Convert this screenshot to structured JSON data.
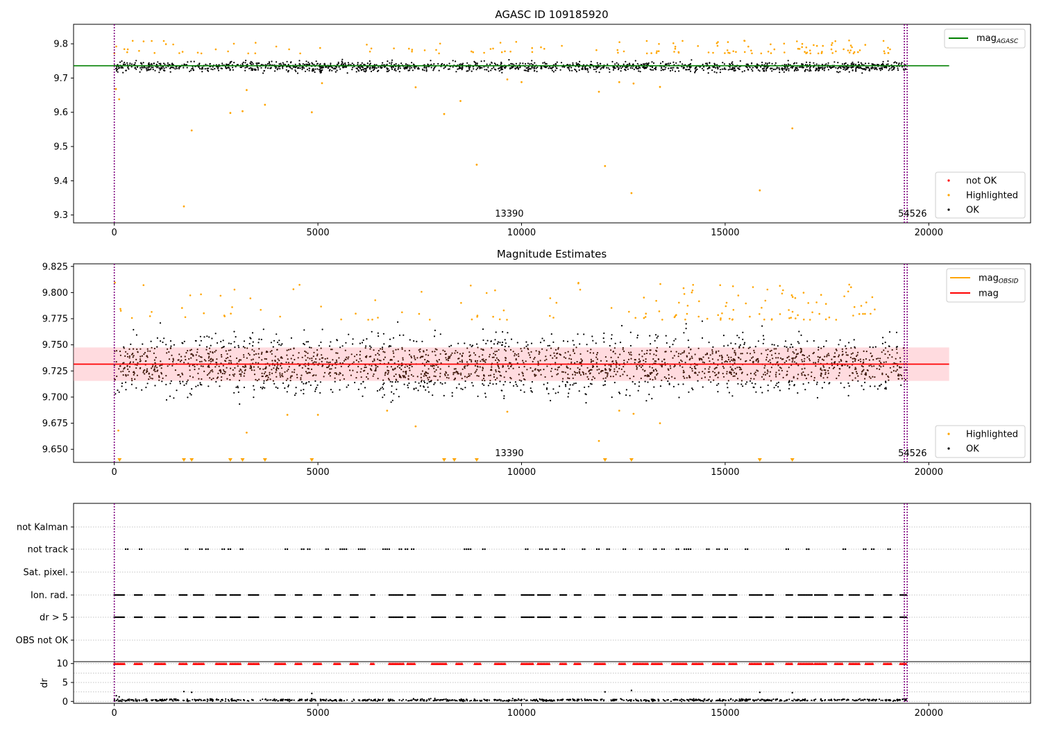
{
  "chart_data": [
    {
      "panel": "agasc",
      "type": "scatter",
      "title": "AGASC ID 109185920",
      "xlabel": "",
      "ylabel": "",
      "xlim": [
        -1000,
        22500
      ],
      "ylim": [
        9.277,
        9.857
      ],
      "xticks": [
        0,
        5000,
        10000,
        15000,
        20000
      ],
      "xtick_labels": [
        "0",
        "5000",
        "10000",
        "15000",
        "20000"
      ],
      "yticks": [
        9.3,
        9.4,
        9.5,
        9.6,
        9.7,
        9.8
      ],
      "ytick_labels": [
        "9.3",
        "9.4",
        "9.5",
        "9.6",
        "9.7",
        "9.8"
      ],
      "reference_line": {
        "name": "mag_AGASC",
        "value": 9.736,
        "x_range": [
          -1000,
          20500
        ],
        "color": "#008000"
      },
      "vertical_markers": [
        {
          "x": 0,
          "label": "13390",
          "label_x": 9700,
          "color": "#800080"
        },
        {
          "x": 19400,
          "label": "54526",
          "label_x": 19600,
          "color": "#800080"
        },
        {
          "x": 19470,
          "label": "",
          "color": "#800080"
        }
      ],
      "ok_band": {
        "series": "OK",
        "x_range": [
          0,
          19450
        ],
        "center": 9.733,
        "spread": 0.016,
        "count": 1600,
        "color": "#000000"
      },
      "highlighted_points": {
        "series": "Highlighted",
        "color": "#ffa500",
        "x": [
          1710,
          1900,
          2850,
          3150,
          3700,
          4850,
          8100,
          8500,
          8900,
          12050,
          12700,
          15850,
          16650,
          40,
          120,
          3250,
          5100,
          7400,
          9650,
          10000,
          11900,
          12400,
          12750,
          13400
        ],
        "y": [
          9.325,
          9.547,
          9.598,
          9.603,
          9.622,
          9.6,
          9.595,
          9.633,
          9.447,
          9.443,
          9.364,
          9.372,
          9.553,
          9.668,
          9.638,
          9.665,
          9.685,
          9.673,
          9.696,
          9.688,
          9.66,
          9.688,
          9.684,
          9.674
        ]
      },
      "highlighted_high": {
        "color": "#ffa500",
        "y_range": [
          9.772,
          9.81
        ],
        "count": 140
      },
      "legend": [
        {
          "name": "mag_AGASC",
          "label": "mag",
          "subscript": "AGASC",
          "kind": "line",
          "color": "#008000",
          "placement": "upper right"
        },
        {
          "name": "not OK",
          "label": "not OK",
          "kind": "point",
          "color": "#ff0000",
          "placement": "lower right"
        },
        {
          "name": "Highlighted",
          "label": "Highlighted",
          "kind": "point",
          "color": "#ffa500",
          "placement": "lower right"
        },
        {
          "name": "OK",
          "label": "OK",
          "kind": "point",
          "color": "#000000",
          "placement": "lower right"
        }
      ]
    },
    {
      "panel": "estimates",
      "type": "scatter",
      "title": "Magnitude Estimates",
      "xlabel": "",
      "ylabel": "",
      "xlim": [
        -1000,
        22500
      ],
      "ylim": [
        9.6375,
        9.8275
      ],
      "xticks": [
        0,
        5000,
        10000,
        15000,
        20000
      ],
      "xtick_labels": [
        "0",
        "5000",
        "10000",
        "15000",
        "20000"
      ],
      "yticks": [
        9.65,
        9.675,
        9.7,
        9.725,
        9.75,
        9.775,
        9.8,
        9.825
      ],
      "ytick_labels": [
        "9.650",
        "9.675",
        "9.700",
        "9.725",
        "9.750",
        "9.775",
        "9.800",
        "9.825"
      ],
      "mag_line": {
        "name": "mag",
        "value": 9.7315,
        "x_range": [
          -1000,
          20500
        ],
        "color": "#ff0000"
      },
      "mag_band": {
        "low": 9.7155,
        "high": 9.7475,
        "x_range": [
          -1000,
          20500
        ],
        "color": "#ffb0b8"
      },
      "mag_obsid": {
        "name": "mag_OBSID",
        "color": "#ffa500"
      },
      "vertical_markers": [
        {
          "x": 0,
          "label": "13390",
          "label_x": 9700,
          "color": "#800080"
        },
        {
          "x": 19400,
          "label": "54526",
          "label_x": 19600,
          "color": "#800080"
        },
        {
          "x": 19470,
          "label": "",
          "color": "#800080"
        }
      ],
      "ok_band": {
        "series": "OK",
        "x_range": [
          0,
          19450
        ],
        "center": 9.731,
        "spread": 0.016,
        "count": 2400,
        "color": "#000000",
        "overlay_color": "#3a1405"
      },
      "highlighted_low": {
        "color": "#ffa500",
        "x": [
          100,
          3250,
          4250,
          5000,
          6700,
          7400,
          9650,
          11900,
          12400,
          12750,
          13400
        ],
        "y": [
          9.668,
          9.666,
          9.683,
          9.683,
          9.687,
          9.672,
          9.686,
          9.658,
          9.687,
          9.684,
          9.675
        ]
      },
      "offscale_markers": {
        "color": "#ffa500",
        "x": [
          130,
          1710,
          1900,
          2850,
          3150,
          3700,
          4850,
          8100,
          8350,
          8900,
          12050,
          12700,
          15850,
          16650
        ]
      },
      "highlighted_high": {
        "color": "#ffa500",
        "y_range": [
          9.774,
          9.81
        ],
        "count": 140
      },
      "legend": [
        {
          "name": "mag_OBSID",
          "label": "mag",
          "subscript": "OBSID",
          "kind": "line",
          "color": "#ffa500",
          "placement": "upper right"
        },
        {
          "name": "mag",
          "label": "mag",
          "kind": "line",
          "color": "#ff0000",
          "placement": "upper right"
        },
        {
          "name": "Highlighted",
          "label": "Highlighted",
          "kind": "point",
          "color": "#ffa500",
          "placement": "lower right"
        },
        {
          "name": "OK",
          "label": "OK",
          "kind": "point",
          "color": "#000000",
          "placement": "lower right"
        }
      ]
    },
    {
      "panel": "flags",
      "type": "scatter",
      "title": "",
      "xlim": [
        -1000,
        22500
      ],
      "categories": [
        "not Kalman",
        "not track",
        "Sat. pixel.",
        "Ion. rad.",
        "dr > 5",
        "OBS not OK"
      ],
      "grid": true,
      "vertical_markers": [
        {
          "x": 0,
          "color": "#800080"
        },
        {
          "x": 19400,
          "color": "#800080"
        },
        {
          "x": 19470,
          "color": "#800080"
        }
      ],
      "flag_points": {
        "not Kalman": [],
        "not track": [
          280,
          620,
          1750,
          2100,
          2250,
          2650,
          2800,
          3100,
          4200,
          4600,
          4750,
          5200,
          5550,
          5650,
          6000,
          6100,
          6600,
          6700,
          7000,
          7150,
          7300,
          8600,
          8700,
          9050,
          10100,
          10450,
          10600,
          10800,
          11000,
          11500,
          11850,
          12100,
          12500,
          12900,
          13250,
          13450,
          13800,
          14000,
          14100,
          14550,
          14800,
          15000,
          15500,
          16500,
          17000,
          17900,
          18400,
          18600,
          19000
        ],
        "Sat. pixel.": [],
        "Ion. rad.": {
          "clusters": [
            [
              0,
              250
            ],
            [
              500,
              700
            ],
            [
              1000,
              1250
            ],
            [
              1600,
              1800
            ],
            [
              1950,
              2200
            ],
            [
              2500,
              2750
            ],
            [
              2850,
              3100
            ],
            [
              3300,
              3550
            ],
            [
              3950,
              4200
            ],
            [
              4450,
              4600
            ],
            [
              4900,
              5100
            ],
            [
              5400,
              5550
            ],
            [
              5800,
              6000
            ],
            [
              6300,
              6400
            ],
            [
              6750,
              7100
            ],
            [
              7200,
              7400
            ],
            [
              7800,
              8150
            ],
            [
              8400,
              8550
            ],
            [
              8850,
              9000
            ],
            [
              9350,
              9600
            ],
            [
              10000,
              10300
            ],
            [
              10400,
              10700
            ],
            [
              10950,
              11100
            ],
            [
              11300,
              11450
            ],
            [
              11800,
              12050
            ],
            [
              12400,
              12550
            ],
            [
              12750,
              13100
            ],
            [
              13200,
              13450
            ],
            [
              13700,
              14050
            ],
            [
              14200,
              14450
            ],
            [
              14700,
              15000
            ],
            [
              15100,
              15300
            ],
            [
              15600,
              15900
            ],
            [
              16000,
              16200
            ],
            [
              16500,
              16650
            ],
            [
              16800,
              17150
            ],
            [
              17200,
              17500
            ],
            [
              17700,
              17900
            ],
            [
              18050,
              18300
            ],
            [
              18450,
              18650
            ],
            [
              18900,
              19100
            ],
            [
              19300,
              19470
            ]
          ]
        },
        "dr > 5": {
          "clusters": [
            [
              0,
              250
            ],
            [
              500,
              700
            ],
            [
              1000,
              1250
            ],
            [
              1600,
              1800
            ],
            [
              1950,
              2200
            ],
            [
              2500,
              2750
            ],
            [
              2850,
              3100
            ],
            [
              3300,
              3550
            ],
            [
              3950,
              4200
            ],
            [
              4450,
              4600
            ],
            [
              4900,
              5100
            ],
            [
              5400,
              5550
            ],
            [
              5800,
              6000
            ],
            [
              6300,
              6400
            ],
            [
              6750,
              7100
            ],
            [
              7200,
              7400
            ],
            [
              7800,
              8150
            ],
            [
              8400,
              8550
            ],
            [
              8850,
              9000
            ],
            [
              9350,
              9600
            ],
            [
              10000,
              10300
            ],
            [
              10400,
              10700
            ],
            [
              10950,
              11100
            ],
            [
              11300,
              11450
            ],
            [
              11800,
              12050
            ],
            [
              12400,
              12550
            ],
            [
              12750,
              13100
            ],
            [
              13200,
              13450
            ],
            [
              13700,
              14050
            ],
            [
              14200,
              14450
            ],
            [
              14700,
              15000
            ],
            [
              15100,
              15300
            ],
            [
              15600,
              15900
            ],
            [
              16000,
              16200
            ],
            [
              16500,
              16650
            ],
            [
              16800,
              17150
            ],
            [
              17200,
              17500
            ],
            [
              17700,
              17900
            ],
            [
              18050,
              18300
            ],
            [
              18450,
              18650
            ],
            [
              18900,
              19100
            ],
            [
              19300,
              19470
            ]
          ]
        },
        "OBS not OK": []
      }
    },
    {
      "panel": "dr",
      "type": "scatter",
      "title": "",
      "xlabel": "",
      "ylabel": "dr",
      "xlim": [
        -1000,
        22500
      ],
      "ylim": [
        -0.5,
        10.5
      ],
      "xticks": [
        0,
        5000,
        10000,
        15000,
        20000
      ],
      "xtick_labels": [
        "0",
        "5000",
        "10000",
        "15000",
        "20000"
      ],
      "yticks": [
        0,
        5,
        10
      ],
      "ytick_labels": [
        "0",
        "5",
        "10"
      ],
      "grid": true,
      "vertical_markers": [
        {
          "x": 0,
          "color": "#800080"
        },
        {
          "x": 19400,
          "color": "#800080"
        },
        {
          "x": 19470,
          "color": "#800080"
        }
      ],
      "ok_band": {
        "series": "OK",
        "x_range": [
          0,
          19450
        ],
        "center": 0.35,
        "spread": 0.25,
        "count": 900,
        "color": "#000000"
      },
      "clipped_markers": {
        "value": 10,
        "color": "#ff0000",
        "marker": "triangle-up"
      },
      "outliers": {
        "color": "#000000",
        "x": [
          1710,
          1900,
          4850,
          12050,
          12700,
          15850,
          16650,
          50,
          120
        ],
        "y": [
          2.6,
          2.4,
          2.1,
          2.5,
          2.9,
          2.4,
          2.3,
          1.5,
          1.2
        ]
      }
    }
  ]
}
